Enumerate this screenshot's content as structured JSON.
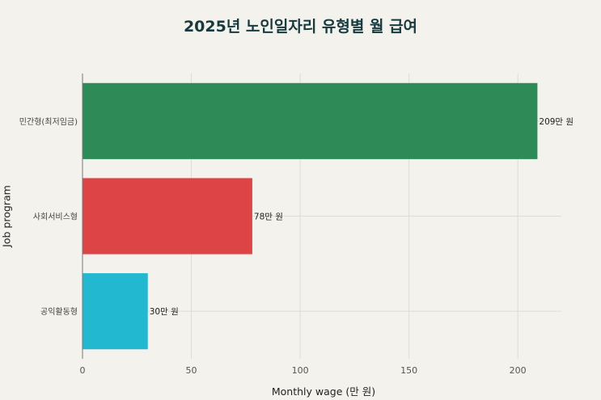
{
  "chart_data": {
    "type": "bar",
    "orientation": "horizontal",
    "title": "2025년 노인일자리 유형별 월 급여",
    "xlabel": "Monthly wage (만 원)",
    "ylabel": "Job program",
    "categories": [
      "민간형(최저임금)",
      "사회서비스형",
      "공익활동형"
    ],
    "values": [
      209,
      78,
      30
    ],
    "data_labels": [
      "209만 원",
      "78만 원",
      "30만 원"
    ],
    "colors": [
      "#2e8b57",
      "#dc4446",
      "#22b8cf"
    ],
    "xlim": [
      0,
      220
    ],
    "xticks": [
      0,
      50,
      100,
      150,
      200
    ],
    "grid": true
  }
}
